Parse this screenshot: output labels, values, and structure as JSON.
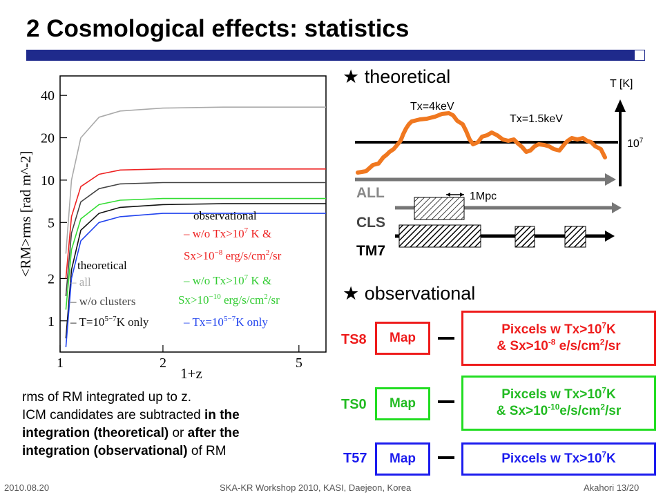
{
  "slide": {
    "title": "2 Cosmological effects: statistics",
    "footer_left": "2010.08.20",
    "footer_center": "SKA-KR Workshop 2010, KASI, Daejeon, Korea",
    "footer_right": "Akahori 13/20"
  },
  "caption": {
    "line1": "rms of RM integrated up to z.",
    "line2_a": "ICM candidates are subtracted ",
    "line2_b": "in the",
    "line3_a": "integration (theoretical)",
    "line3_b": " or ",
    "line3_c": "after the",
    "line4_a": "integration (observational)",
    "line4_b": " of RM"
  },
  "theoretical": {
    "header": "★ theoretical",
    "t_axis_label": "T [K]",
    "t_tick_base": "10",
    "t_tick_exp": "7",
    "tx4_label": "Tx=4keV",
    "tx15_label": "Tx=1.5keV",
    "scale_label": "1Mpc",
    "row_all": "ALL",
    "row_cls": "CLS",
    "row_tm7": "TM7"
  },
  "observational": {
    "header": "★ observational",
    "rows": [
      {
        "label": "TS8",
        "map": "Map",
        "line1": "Pixcels w Tx>10",
        "line1_exp": "7",
        "line1_tail": "K",
        "line2_a": "& Sx>10",
        "line2_exp": "-8",
        "line2_b": " e/s/cm",
        "line2_exp2": "2",
        "line2_c": "/sr",
        "color": "#ee1c1c"
      },
      {
        "label": "TS0",
        "map": "Map",
        "line1": "Pixcels w Tx>10",
        "line1_exp": "7",
        "line1_tail": "K",
        "line2_a": "& Sx>10",
        "line2_exp": "-10",
        "line2_b": "e/s/cm",
        "line2_exp2": "2",
        "line2_c": "/sr",
        "color": "#22dd22"
      },
      {
        "label": "T57",
        "map": "Map",
        "line1": "Pixcels w Tx>10",
        "line1_exp": "7",
        "line1_tail": "K",
        "color": "#1c1cee"
      }
    ]
  },
  "chart_data": {
    "type": "line",
    "xlabel": "1+z",
    "ylabel": "<RM>rms [rad m^-2]",
    "xscale": "log",
    "yscale": "log",
    "xlim": [
      1,
      6
    ],
    "ylim": [
      0.6,
      55
    ],
    "x_ticks": [
      "1",
      "2",
      "5"
    ],
    "y_ticks": [
      "1",
      "2",
      "5",
      "10",
      "20",
      "40"
    ],
    "legend": {
      "obs_title": "observational",
      "obs1a": "w/o Tx>10",
      "obs1a_exp": "7",
      "obs1a_tail": " K &",
      "obs1b": "Sx>10",
      "obs1b_exp": "−8",
      "obs1b_tail": " erg/s/cm",
      "obs1b_exp2": "2",
      "obs1b_end": "/sr",
      "obs2a": "w/o Tx>10",
      "obs2a_exp": "7",
      "obs2a_tail": " K &",
      "obs2b": "Sx>10",
      "obs2b_exp": "−10",
      "obs2b_tail": " erg/s/cm",
      "obs2b_exp2": "2",
      "obs2b_end": "/sr",
      "obs3": "Tx=10",
      "obs3_exp": "5−7",
      "obs3_tail": "K only",
      "theo_title": "theoretical",
      "theo1": "all",
      "theo2": "w/o clusters",
      "theo3": "T=10",
      "theo3_exp": "5−7",
      "theo3_tail": "K only"
    },
    "series": [
      {
        "color": "#aaaaaa",
        "style": "solid",
        "x": [
          1.04,
          1.08,
          1.15,
          1.3,
          1.5,
          2.0,
          3.0,
          4.5,
          6.0
        ],
        "y": [
          3,
          10,
          20,
          28,
          31,
          32.5,
          33,
          33,
          33
        ]
      },
      {
        "color": "#ee2222",
        "style": "solid",
        "x": [
          1.04,
          1.08,
          1.15,
          1.3,
          1.5,
          2.0,
          3.0,
          4.5,
          6.0
        ],
        "y": [
          2,
          5.5,
          9,
          11,
          11.8,
          12,
          12,
          12,
          12
        ]
      },
      {
        "color": "#444444",
        "style": "solid",
        "x": [
          1.04,
          1.08,
          1.15,
          1.3,
          1.5,
          2.0,
          3.0,
          4.5,
          6.0
        ],
        "y": [
          1.5,
          4.2,
          7,
          8.7,
          9.4,
          9.6,
          9.6,
          9.6,
          9.6
        ]
      },
      {
        "color": "#33dd33",
        "style": "solid",
        "x": [
          1.04,
          1.08,
          1.15,
          1.3,
          1.5,
          2.0,
          3.0,
          4.5,
          6.0
        ],
        "y": [
          1.2,
          3.2,
          5.3,
          6.7,
          7.2,
          7.4,
          7.4,
          7.4,
          7.4
        ]
      },
      {
        "color": "#111111",
        "style": "solid",
        "x": [
          1.04,
          1.08,
          1.15,
          1.3,
          1.5,
          2.0,
          3.0,
          4.5,
          6.0
        ],
        "y": [
          0.75,
          2.3,
          4.4,
          5.8,
          6.4,
          6.7,
          6.8,
          6.8,
          6.8
        ]
      },
      {
        "color": "#2244ee",
        "style": "solid",
        "x": [
          1.04,
          1.08,
          1.15,
          1.3,
          1.5,
          2.0,
          3.0,
          4.5,
          6.0
        ],
        "y": [
          0.65,
          2.0,
          3.7,
          5.0,
          5.5,
          5.8,
          5.8,
          5.8,
          5.8
        ]
      }
    ]
  }
}
